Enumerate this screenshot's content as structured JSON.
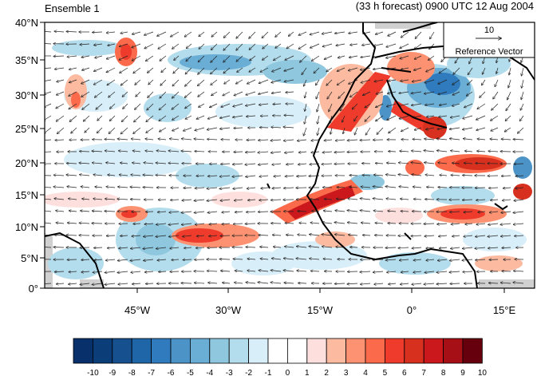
{
  "header": {
    "left_title": "Ensemble 1",
    "right_title": "(33 h forecast) 0900 UTC 12 Aug 2004"
  },
  "map": {
    "lat_labels": [
      "40°N",
      "35°N",
      "30°N",
      "25°N",
      "20°N",
      "15°N",
      "10°N",
      "5°N",
      "0°"
    ],
    "lon_labels": [
      "45°W",
      "30°W",
      "15°W",
      "0°",
      "15°E"
    ],
    "reference_vector": {
      "magnitude": "10",
      "label": "Reference Vector"
    }
  },
  "colorbar": {
    "labels": [
      "-10",
      "-9",
      "-8",
      "-7",
      "-6",
      "-5",
      "-4",
      "-3",
      "-2",
      "-1",
      "0",
      "1",
      "2",
      "3",
      "4",
      "5",
      "6",
      "7",
      "8",
      "9",
      "10"
    ],
    "colors": [
      "#08306b",
      "#0b3d78",
      "#17508f",
      "#1f66a8",
      "#2f7bbd",
      "#4c93c8",
      "#6aaed6",
      "#8ec7de",
      "#b3dcec",
      "#d8eef8",
      "#ffffff",
      "#ffffff",
      "#fde0dd",
      "#fcbba1",
      "#fc9272",
      "#fb6a4a",
      "#ef3b2c",
      "#d7301f",
      "#cb181d",
      "#a50f15",
      "#67000d"
    ]
  },
  "colors": {
    "land_mask": "#d0d0d0",
    "coast": "#000000"
  }
}
